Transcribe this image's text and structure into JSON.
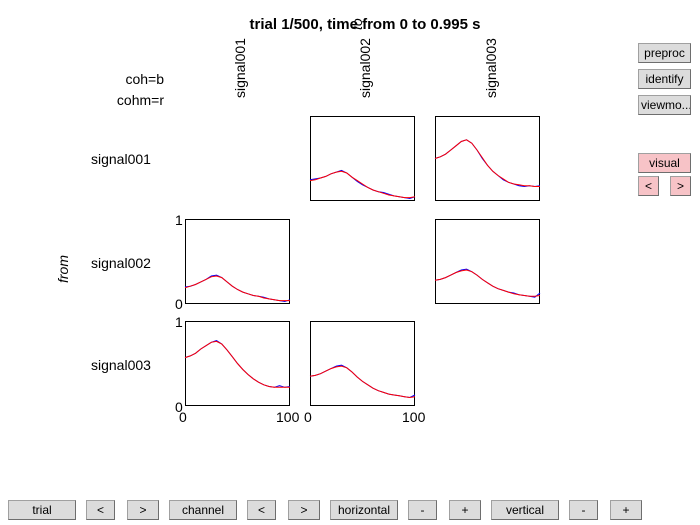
{
  "title": "trial 1/500, time from 0 to 0.995 s",
  "legend": {
    "coh": "coh=b",
    "cohm": "cohm=r"
  },
  "axis_labels": {
    "to": "to",
    "from": "from"
  },
  "colors": {
    "coh": "#0000ff",
    "cohm": "#ff0000"
  },
  "side_buttons": {
    "preproc": "preproc",
    "identify": "identify",
    "viewmode": "viewmo...",
    "visual": "visual",
    "prev": "<",
    "next": ">"
  },
  "bottom_buttons": {
    "trial": "trial",
    "trial_prev": "<",
    "trial_next": ">",
    "channel": "channel",
    "channel_prev": "<",
    "channel_next": ">",
    "horizontal": "horizontal",
    "horizontal_minus": "-",
    "horizontal_plus": "+",
    "vertical": "vertical",
    "vertical_minus": "-",
    "vertical_plus": "+"
  },
  "chart_data": {
    "type": "line",
    "channels": [
      "signal001",
      "signal002",
      "signal003"
    ],
    "xlim": [
      0,
      100
    ],
    "ylim": [
      0,
      1
    ],
    "xticks": [
      "0",
      "100"
    ],
    "yticks": [
      "0",
      "1"
    ],
    "x": [
      0,
      5,
      10,
      15,
      20,
      25,
      30,
      35,
      40,
      45,
      50,
      55,
      60,
      65,
      70,
      75,
      80,
      85,
      90,
      95,
      100
    ],
    "panels": [
      {
        "from": "signal001",
        "to": "signal002",
        "coh": [
          0.25,
          0.26,
          0.27,
          0.29,
          0.32,
          0.34,
          0.36,
          0.33,
          0.28,
          0.23,
          0.19,
          0.16,
          0.13,
          0.11,
          0.1,
          0.08,
          0.06,
          0.05,
          0.04,
          0.03,
          0.05
        ],
        "cohm": [
          0.24,
          0.25,
          0.27,
          0.29,
          0.32,
          0.34,
          0.35,
          0.33,
          0.28,
          0.24,
          0.2,
          0.16,
          0.13,
          0.11,
          0.09,
          0.07,
          0.06,
          0.05,
          0.04,
          0.04,
          0.05
        ]
      },
      {
        "from": "signal001",
        "to": "signal003",
        "coh": [
          0.5,
          0.52,
          0.55,
          0.6,
          0.65,
          0.7,
          0.72,
          0.68,
          0.6,
          0.5,
          0.42,
          0.35,
          0.3,
          0.25,
          0.22,
          0.2,
          0.18,
          0.17,
          0.18,
          0.17,
          0.18
        ],
        "cohm": [
          0.5,
          0.52,
          0.55,
          0.6,
          0.65,
          0.7,
          0.72,
          0.68,
          0.6,
          0.51,
          0.42,
          0.35,
          0.3,
          0.26,
          0.22,
          0.2,
          0.19,
          0.18,
          0.18,
          0.17,
          0.17
        ]
      },
      {
        "from": "signal002",
        "to": "signal001",
        "coh": [
          0.2,
          0.21,
          0.23,
          0.26,
          0.29,
          0.33,
          0.34,
          0.31,
          0.26,
          0.21,
          0.17,
          0.14,
          0.12,
          0.1,
          0.09,
          0.08,
          0.06,
          0.05,
          0.04,
          0.03,
          0.05
        ],
        "cohm": [
          0.19,
          0.21,
          0.23,
          0.26,
          0.29,
          0.32,
          0.33,
          0.31,
          0.26,
          0.21,
          0.17,
          0.14,
          0.12,
          0.1,
          0.09,
          0.07,
          0.06,
          0.05,
          0.04,
          0.04,
          0.04
        ]
      },
      {
        "from": "signal002",
        "to": "signal003",
        "coh": [
          0.28,
          0.29,
          0.31,
          0.34,
          0.37,
          0.4,
          0.41,
          0.38,
          0.34,
          0.29,
          0.25,
          0.21,
          0.18,
          0.16,
          0.14,
          0.13,
          0.11,
          0.1,
          0.09,
          0.08,
          0.13
        ],
        "cohm": [
          0.28,
          0.29,
          0.31,
          0.34,
          0.37,
          0.39,
          0.4,
          0.38,
          0.34,
          0.29,
          0.25,
          0.21,
          0.18,
          0.16,
          0.14,
          0.12,
          0.11,
          0.1,
          0.09,
          0.09,
          0.1
        ]
      },
      {
        "from": "signal003",
        "to": "signal001",
        "coh": [
          0.57,
          0.59,
          0.62,
          0.67,
          0.71,
          0.75,
          0.77,
          0.73,
          0.66,
          0.58,
          0.5,
          0.43,
          0.37,
          0.32,
          0.28,
          0.25,
          0.23,
          0.22,
          0.24,
          0.22,
          0.23
        ],
        "cohm": [
          0.57,
          0.59,
          0.62,
          0.67,
          0.71,
          0.75,
          0.76,
          0.73,
          0.66,
          0.58,
          0.5,
          0.43,
          0.37,
          0.32,
          0.28,
          0.25,
          0.23,
          0.22,
          0.22,
          0.22,
          0.22
        ]
      },
      {
        "from": "signal003",
        "to": "signal002",
        "coh": [
          0.35,
          0.36,
          0.38,
          0.41,
          0.44,
          0.47,
          0.48,
          0.45,
          0.4,
          0.34,
          0.29,
          0.25,
          0.21,
          0.18,
          0.16,
          0.14,
          0.13,
          0.12,
          0.11,
          0.1,
          0.13
        ],
        "cohm": [
          0.35,
          0.36,
          0.38,
          0.41,
          0.44,
          0.46,
          0.47,
          0.45,
          0.4,
          0.34,
          0.29,
          0.25,
          0.21,
          0.18,
          0.16,
          0.14,
          0.13,
          0.12,
          0.11,
          0.1,
          0.11
        ]
      }
    ]
  }
}
